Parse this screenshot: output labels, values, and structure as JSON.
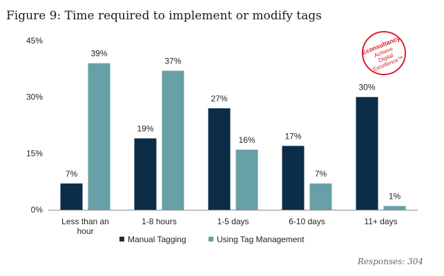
{
  "title": "Figure 9: Time required to implement or modify tags",
  "footer": "Responses: 304",
  "logo": {
    "brand": "Econsultancy",
    "tagline_1": "Achieve",
    "tagline_2": "Digital",
    "tagline_3": "Excellence™",
    "color": "#d61f2a"
  },
  "colors": {
    "manual": "#0c2d48",
    "tag_mgmt": "#67a0a6"
  },
  "chart_data": {
    "type": "bar",
    "title": "Figure 9: Time required to implement or modify tags",
    "xlabel": "",
    "ylabel": "",
    "ylim": [
      0,
      45
    ],
    "yticks": [
      "0%",
      "15%",
      "30%",
      "45%"
    ],
    "ytick_values": [
      0,
      15,
      30,
      45
    ],
    "categories": [
      "Less than an hour",
      "1-8 hours",
      "1-5 days",
      "6-10 days",
      "11+ days"
    ],
    "category_lines": [
      [
        "Less than an",
        "hour"
      ],
      [
        "1-8 hours"
      ],
      [
        "1-5 days"
      ],
      [
        "6-10 days"
      ],
      [
        "11+ days"
      ]
    ],
    "series": [
      {
        "name": "Manual Tagging",
        "values": [
          7,
          19,
          27,
          17,
          30
        ],
        "labels": [
          "7%",
          "19%",
          "27%",
          "17%",
          "30%"
        ]
      },
      {
        "name": "Using Tag Management",
        "values": [
          39,
          37,
          16,
          7,
          1
        ],
        "labels": [
          "39%",
          "37%",
          "16%",
          "7%",
          "1%"
        ]
      }
    ],
    "legend_position": "bottom",
    "grid": false
  }
}
